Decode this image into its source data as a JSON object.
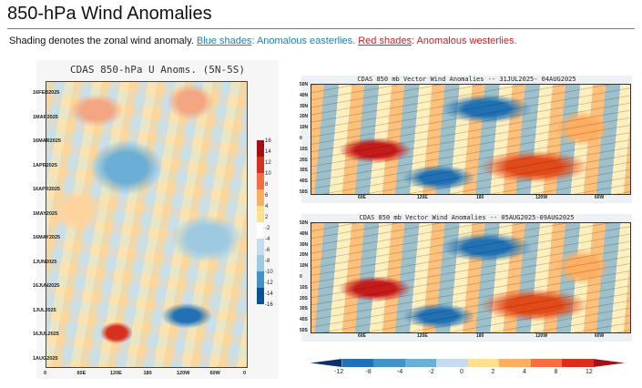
{
  "page": {
    "title": "850-hPa Wind Anomalies",
    "caption_start": "Shading denotes the zonal wind anomaly. ",
    "blue_link": "Blue shades",
    "blue_text": ": Anomalous easterlies. ",
    "red_link": "Red shades",
    "red_text": ": Anomalous westerlies."
  },
  "colors": {
    "easterly": "#1f7fc4",
    "westerly": "#d21f1f"
  },
  "hovmoller": {
    "title": "CDAS 850-hPa U Anoms. (5N-5S)",
    "dates": [
      "16FEB2025",
      "1MAR2025",
      "16MAR2025",
      "1APR2025",
      "16APR2025",
      "1MAY2025",
      "16MAY2025",
      "1JUN2025",
      "16JUN2025",
      "1JUL2025",
      "16JUL2025",
      "1AUG2025"
    ],
    "lons": [
      "0",
      "60E",
      "120E",
      "180",
      "120W",
      "60W",
      "0"
    ],
    "colorbar_labels": [
      "16",
      "14",
      "12",
      "10",
      "8",
      "6",
      "4",
      "2",
      "-2",
      "-4",
      "-6",
      "-8",
      "-10",
      "-12",
      "-14",
      "-16"
    ]
  },
  "map_top": {
    "title": "CDAS 850 mb Vector Wind Anomalies -- 31JUL2025- 04AUG2025",
    "lats": [
      "50N",
      "40N",
      "30N",
      "20N",
      "10N",
      "0",
      "10S",
      "20S",
      "30S",
      "40S",
      "50S"
    ],
    "lons": [
      "60E",
      "120E",
      "180",
      "120W",
      "60W"
    ]
  },
  "map_bottom": {
    "title": "CDAS 850 mb Vector Wind Anomalies -- 05AUG2025-09AUG2025",
    "lats": [
      "50N",
      "40N",
      "30N",
      "20N",
      "10N",
      "0",
      "10S",
      "20S",
      "30S",
      "40S",
      "50S"
    ],
    "lons": [
      "60E",
      "120E",
      "180",
      "120W",
      "60W"
    ]
  },
  "legend": {
    "labels": [
      "-12",
      "-8",
      "-4",
      "-2",
      "0",
      "2",
      "4",
      "8",
      "12"
    ]
  }
}
